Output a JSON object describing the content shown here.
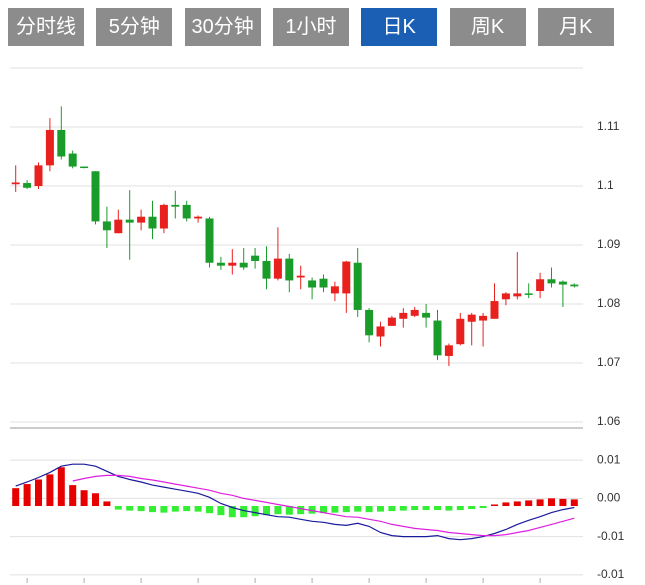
{
  "tabs": [
    "分时线",
    "5分钟",
    "30分钟",
    "1小时",
    "日K",
    "周K",
    "月K"
  ],
  "active_tab": 4,
  "chart_data": [
    {
      "type": "candlestick",
      "ylim": [
        1.0595,
        1.12
      ],
      "yticks": [
        1.11,
        1.1,
        1.09,
        1.08,
        1.07,
        1.06
      ],
      "grid": true,
      "up_color": "#e8211e",
      "down_color": "#1a9c2a",
      "open": [
        1.1003,
        1.1005,
        1.1,
        1.1035,
        1.1095,
        1.1055,
        1.1033,
        1.1025,
        1.094,
        1.092,
        1.0943,
        1.0938,
        1.0948,
        1.0928,
        1.0968,
        1.0968,
        1.0945,
        1.0945,
        1.087,
        1.0865,
        1.087,
        1.0882,
        1.0873,
        1.0843,
        1.0877,
        1.0845,
        1.084,
        1.0843,
        1.0818,
        1.0818,
        1.087,
        1.079,
        1.0745,
        1.0763,
        1.0775,
        1.078,
        1.0785,
        1.0772,
        1.0712,
        1.0732,
        1.077,
        1.0772,
        1.0775,
        1.0808,
        1.0813,
        1.0818,
        1.0822,
        1.0842,
        1.0838,
        1.0833
      ],
      "high": [
        1.1035,
        1.101,
        1.104,
        1.1115,
        1.1135,
        1.106,
        1.1033,
        1.1025,
        1.0965,
        1.096,
        1.0993,
        1.096,
        1.0975,
        1.097,
        1.0992,
        1.0975,
        1.095,
        1.0948,
        1.088,
        1.0893,
        1.0895,
        1.0895,
        1.0898,
        1.093,
        1.0885,
        1.0865,
        1.0845,
        1.085,
        1.0838,
        1.0873,
        1.0895,
        1.0793,
        1.077,
        1.078,
        1.0793,
        1.0795,
        1.08,
        1.079,
        1.0733,
        1.0785,
        1.0785,
        1.0785,
        1.0835,
        1.082,
        1.0888,
        1.0835,
        1.0853,
        1.0862,
        1.084,
        1.0835
      ],
      "low": [
        1.099,
        1.0995,
        1.0995,
        1.1025,
        1.1045,
        1.103,
        1.103,
        1.0935,
        1.0895,
        1.092,
        1.0875,
        1.0925,
        1.091,
        1.092,
        1.0945,
        1.094,
        1.0938,
        1.0862,
        1.0858,
        1.085,
        1.0858,
        1.086,
        1.0825,
        1.084,
        1.082,
        1.0825,
        1.0808,
        1.082,
        1.0805,
        1.0785,
        1.0778,
        1.0735,
        1.0728,
        1.0765,
        1.076,
        1.0778,
        1.076,
        1.0705,
        1.0695,
        1.073,
        1.073,
        1.0728,
        1.0775,
        1.0798,
        1.0808,
        1.081,
        1.081,
        1.0828,
        1.0795,
        1.0828
      ],
      "close": [
        1.1006,
        1.0997,
        1.1035,
        1.1095,
        1.105,
        1.1033,
        1.1031,
        1.094,
        1.0925,
        1.0943,
        1.0938,
        1.0948,
        1.0928,
        1.0968,
        1.0965,
        1.0945,
        1.0948,
        1.087,
        1.0865,
        1.087,
        1.0862,
        1.0873,
        1.0843,
        1.0877,
        1.084,
        1.0848,
        1.0828,
        1.0828,
        1.083,
        1.0872,
        1.079,
        1.0747,
        1.0762,
        1.0777,
        1.0785,
        1.079,
        1.0777,
        1.0713,
        1.073,
        1.0775,
        1.0782,
        1.078,
        1.0805,
        1.0818,
        1.0818,
        1.0817,
        1.0842,
        1.0835,
        1.0833,
        1.083
      ]
    },
    {
      "type": "macd",
      "ylim": [
        -0.0151,
        0.0153
      ],
      "yticks": [
        {
          "value": 0.009,
          "label": "0.01"
        },
        {
          "value": 0.0015,
          "label": "0.00"
        },
        {
          "value": -0.006,
          "label": "-0.01"
        },
        {
          "value": -0.0135,
          "label": "-0.01"
        }
      ],
      "grid": true,
      "histogram": {
        "up_color": "#e60000",
        "down_color": "#33ee33",
        "values": [
          0.0035,
          0.0043,
          0.0052,
          0.0062,
          0.0076,
          0.0041,
          0.0031,
          0.0025,
          0.0009,
          -0.0007,
          -0.0009,
          -0.001,
          -0.0012,
          -0.0013,
          -0.0011,
          -0.001,
          -0.0011,
          -0.0014,
          -0.0018,
          -0.0022,
          -0.0022,
          -0.002,
          -0.0018,
          -0.0016,
          -0.0017,
          -0.0016,
          -0.0015,
          -0.0014,
          -0.0013,
          -0.0012,
          -0.0011,
          -0.0012,
          -0.0011,
          -0.001,
          -0.0009,
          -0.0008,
          -0.0008,
          -0.0008,
          -0.0009,
          -0.0008,
          -0.0006,
          -0.0004,
          0.0003,
          0.0007,
          0.0009,
          0.0011,
          0.0013,
          0.0015,
          0.0014,
          0.0013
        ]
      },
      "lines": [
        {
          "color": "#1a1a9c",
          "values": [
            0.0039,
            0.0047,
            0.0056,
            0.0066,
            0.0078,
            0.0082,
            0.0082,
            0.0078,
            0.0068,
            0.0058,
            0.0052,
            0.0047,
            0.0041,
            0.0037,
            0.0033,
            0.0029,
            0.0025,
            0.0017,
            0.0005,
            -0.0003,
            -0.0009,
            -0.0013,
            -0.0017,
            -0.0021,
            -0.0022,
            -0.0026,
            -0.003,
            -0.0032,
            -0.0036,
            -0.0038,
            -0.0034,
            -0.004,
            -0.0052,
            -0.0058,
            -0.006,
            -0.006,
            -0.006,
            -0.0058,
            -0.0064,
            -0.0066,
            -0.0064,
            -0.006,
            -0.0054,
            -0.0046,
            -0.0036,
            -0.0028,
            -0.0021,
            -0.0013,
            -0.0007,
            -0.0003
          ]
        },
        {
          "color": "#e020e0",
          "values": [
            null,
            null,
            null,
            null,
            null,
            0.0049,
            0.0054,
            0.0058,
            0.006,
            0.006,
            0.0058,
            0.0054,
            0.0051,
            0.0047,
            0.0043,
            0.0039,
            0.0035,
            0.0031,
            0.0025,
            0.0021,
            0.0015,
            0.0011,
            0.0007,
            0.0003,
            -0.0001,
            -0.0005,
            -0.0009,
            -0.0013,
            -0.0017,
            -0.0021,
            -0.0022,
            -0.0026,
            -0.003,
            -0.0036,
            -0.004,
            -0.0044,
            -0.0046,
            -0.0048,
            -0.0052,
            -0.0054,
            -0.0056,
            -0.0058,
            -0.0058,
            -0.0056,
            -0.0052,
            -0.0048,
            -0.0042,
            -0.0036,
            -0.003,
            -0.0024
          ]
        }
      ]
    }
  ]
}
